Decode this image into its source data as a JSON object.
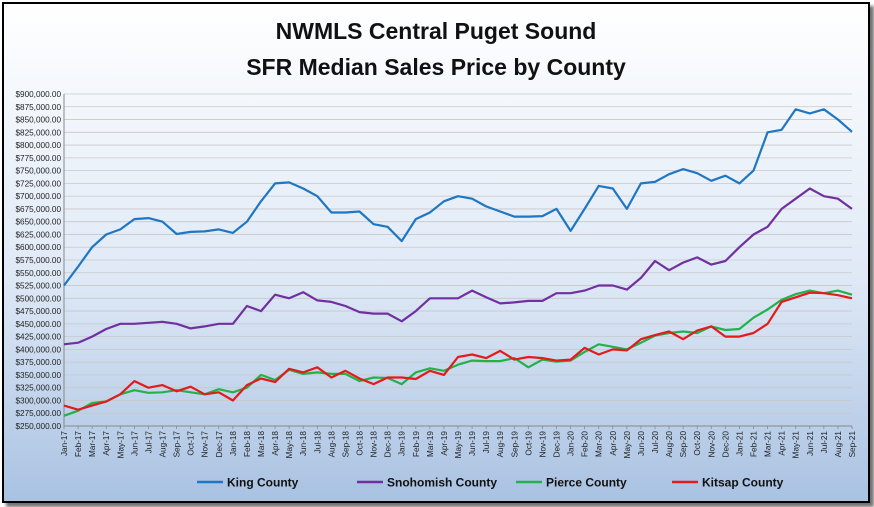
{
  "chart_data": {
    "type": "line",
    "title": "NWMLS Central Puget Sound",
    "subtitle": "SFR Median Sales Price by County",
    "xlabel": "",
    "ylabel": "",
    "ylim": [
      250000,
      900000
    ],
    "ytick_step": 25000,
    "grid": true,
    "legend_position": "bottom",
    "categories": [
      "Jan-17",
      "Feb-17",
      "Mar-17",
      "Apr-17",
      "May-17",
      "Jun-17",
      "Jul-17",
      "Aug-17",
      "Sep-17",
      "Oct-17",
      "Nov-17",
      "Dec-17",
      "Jan-18",
      "Feb-18",
      "Mar-18",
      "Apr-18",
      "May-18",
      "Jun-18",
      "Jul-18",
      "Aug-18",
      "Sep-18",
      "Oct-18",
      "Nov-18",
      "Dec-18",
      "Jan-19",
      "Feb-19",
      "Mar-19",
      "Apr-19",
      "May-19",
      "Jun-19",
      "Jul-19",
      "Aug-19",
      "Sep-19",
      "Oct-19",
      "Nov-19",
      "Dec-19",
      "Jan-20",
      "Feb-20",
      "Mar-20",
      "Apr-20",
      "May-20",
      "Jun-20",
      "Jul-20",
      "Aug-20",
      "Sep-20",
      "Oct-20",
      "Nov-20",
      "Dec-20",
      "Jan-21",
      "Feb-21",
      "Mar-21",
      "Apr-21",
      "May-21",
      "Jun-21",
      "Jul-21",
      "Aug-21",
      "Sep-21"
    ],
    "series": [
      {
        "name": "King County",
        "color": "#1f77c3",
        "values": [
          525000,
          562000,
          600000,
          625000,
          635000,
          655000,
          657000,
          650000,
          626000,
          630000,
          631000,
          635000,
          628000,
          650000,
          690000,
          725000,
          727000,
          715000,
          700000,
          668000,
          668000,
          670000,
          645000,
          640000,
          612000,
          655000,
          668000,
          690000,
          700000,
          695000,
          680000,
          670000,
          660000,
          660000,
          661000,
          675000,
          632000,
          675000,
          720000,
          715000,
          675000,
          725000,
          728000,
          743000,
          753000,
          745000,
          730000,
          740000,
          725000,
          750000,
          825000,
          830000,
          870000,
          862000,
          870000,
          850000,
          826000
        ]
      },
      {
        "name": "Snohomish County",
        "color": "#7030a0",
        "values": [
          410000,
          413000,
          425000,
          440000,
          450000,
          450000,
          452000,
          454000,
          450000,
          441000,
          445000,
          450000,
          450000,
          485000,
          475000,
          507000,
          500000,
          512000,
          496000,
          493000,
          485000,
          473000,
          470000,
          470000,
          455000,
          475000,
          500000,
          500000,
          500000,
          515000,
          502000,
          490000,
          492000,
          495000,
          495000,
          510000,
          510000,
          515000,
          525000,
          525000,
          517000,
          540000,
          573000,
          555000,
          570000,
          580000,
          566000,
          573000,
          600000,
          625000,
          640000,
          675000,
          695000,
          715000,
          700000,
          695000,
          675000
        ]
      },
      {
        "name": "Pierce County",
        "color": "#21b24b",
        "values": [
          270000,
          280000,
          295000,
          298000,
          312000,
          320000,
          315000,
          316000,
          320000,
          316000,
          312000,
          322000,
          316000,
          325000,
          350000,
          340000,
          360000,
          352000,
          355000,
          352000,
          352000,
          338000,
          345000,
          344000,
          332000,
          355000,
          363000,
          358000,
          370000,
          378000,
          377000,
          377000,
          383000,
          365000,
          380000,
          376000,
          378000,
          395000,
          410000,
          405000,
          400000,
          413000,
          427000,
          432000,
          435000,
          432000,
          445000,
          438000,
          440000,
          462000,
          478000,
          497000,
          508000,
          515000,
          510000,
          515000,
          507000
        ]
      },
      {
        "name": "Kitsap County",
        "color": "#e41a1c",
        "values": [
          290000,
          282000,
          290000,
          298000,
          312000,
          338000,
          325000,
          330000,
          318000,
          327000,
          312000,
          316000,
          300000,
          330000,
          343000,
          336000,
          362000,
          355000,
          365000,
          345000,
          358000,
          343000,
          332000,
          345000,
          345000,
          342000,
          358000,
          350000,
          385000,
          390000,
          383000,
          397000,
          380000,
          385000,
          383000,
          378000,
          380000,
          403000,
          390000,
          400000,
          398000,
          420000,
          428000,
          435000,
          420000,
          437000,
          445000,
          425000,
          425000,
          432000,
          450000,
          493000,
          502000,
          511000,
          510000,
          506000,
          500000
        ]
      }
    ]
  }
}
